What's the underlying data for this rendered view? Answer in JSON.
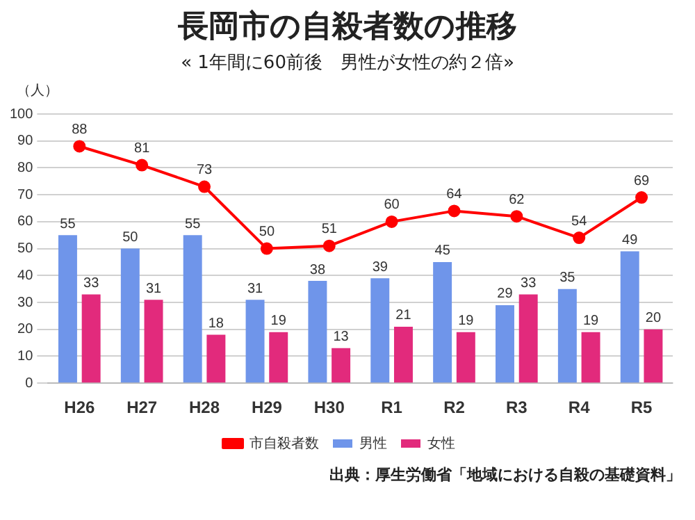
{
  "chart_data": {
    "type": "bar",
    "title": "長岡市の自殺者数の推移",
    "subtitle": "« 1年間に60前後　男性が女性の約２倍»",
    "ylabel": "（人）",
    "annotations": [
      "出典：厚生労働省「地域における自殺の基礎資料」"
    ],
    "categories": [
      "H26",
      "H27",
      "H28",
      "H29",
      "H30",
      "R1",
      "R2",
      "R3",
      "R4",
      "R5"
    ],
    "series": [
      {
        "name": "男性",
        "color": "#6f95ea",
        "values": [
          55,
          50,
          55,
          31,
          38,
          39,
          45,
          29,
          35,
          49
        ]
      },
      {
        "name": "女性",
        "color": "#e22a7c",
        "values": [
          33,
          31,
          18,
          19,
          13,
          21,
          19,
          33,
          19,
          20
        ]
      },
      {
        "name": "市自殺者数",
        "type": "line",
        "color": "#ff0000",
        "values": [
          88,
          81,
          73,
          50,
          51,
          60,
          64,
          62,
          54,
          69
        ]
      }
    ],
    "ylim": [
      0,
      100
    ],
    "yticks": [
      0,
      10,
      20,
      30,
      40,
      50,
      60,
      70,
      80,
      90,
      100
    ],
    "grid": "y",
    "legend": "bottom",
    "data_labels": true,
    "marker": "circle",
    "line_style": "solid"
  }
}
